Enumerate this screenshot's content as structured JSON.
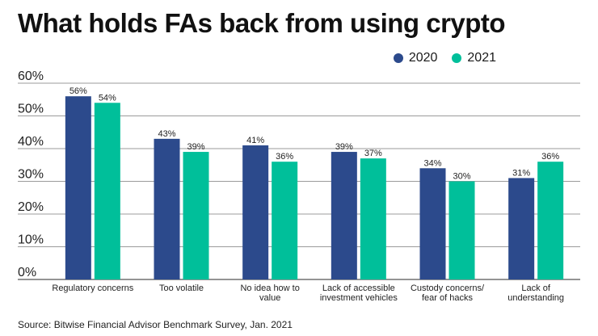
{
  "chart_data": {
    "type": "bar",
    "title": "What holds FAs back from using crypto",
    "categories": [
      [
        "Regulatory concerns"
      ],
      [
        "Too volatile"
      ],
      [
        "No idea how to",
        "value"
      ],
      [
        "Lack of accessible",
        "investment vehicles"
      ],
      [
        "Custody concerns/",
        "fear of hacks"
      ],
      [
        "Lack of",
        "understanding"
      ]
    ],
    "series": [
      {
        "name": "2020",
        "color": "#2c4a8c",
        "values": [
          56,
          43,
          41,
          39,
          34,
          31
        ]
      },
      {
        "name": "2021",
        "color": "#00bf9a",
        "values": [
          54,
          39,
          36,
          37,
          30,
          36
        ]
      }
    ],
    "ylim": [
      0,
      60
    ],
    "yticks": [
      "0%",
      "10%",
      "20%",
      "30%",
      "40%",
      "50%",
      "60%"
    ],
    "value_suffix": "%",
    "legend_position": "top-right",
    "grid": true
  },
  "source": "Source: Bitwise Financial Advisor Benchmark Survey, Jan. 2021"
}
